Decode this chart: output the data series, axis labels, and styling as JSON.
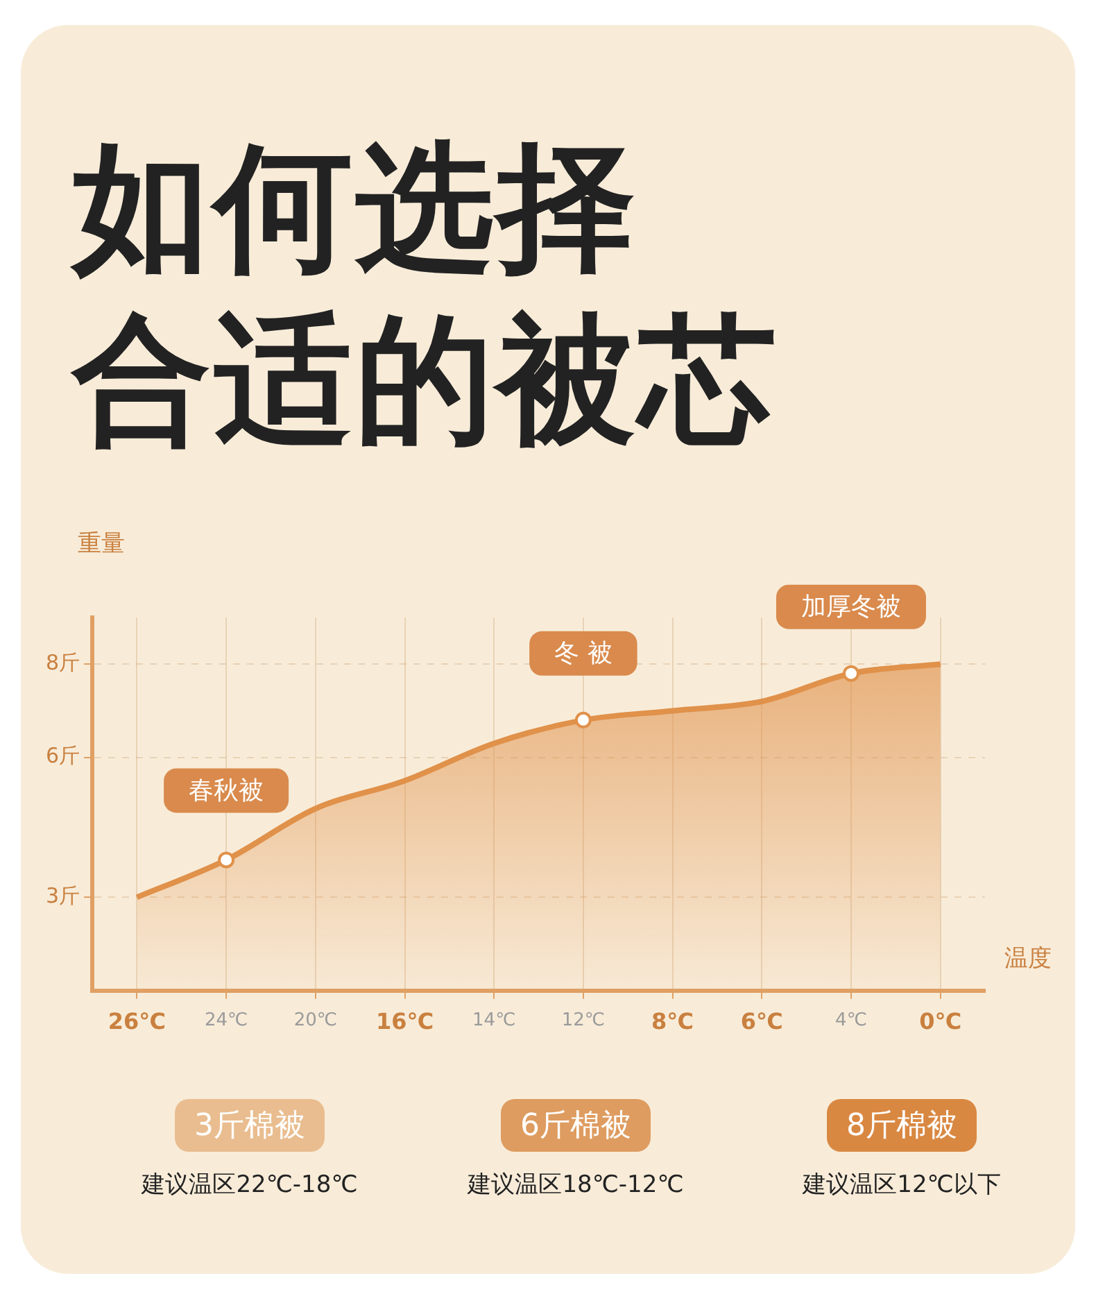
{
  "chart_data": {
    "type": "area",
    "title": "如何选择合适的被芯",
    "xlabel": "温度",
    "ylabel": "重量",
    "categories": [
      "26℃",
      "24℃",
      "20℃",
      "16℃",
      "14℃",
      "12℃",
      "8℃",
      "6℃",
      "4℃",
      "0℃"
    ],
    "values": [
      3.0,
      3.8,
      4.9,
      5.5,
      6.3,
      6.8,
      7.0,
      7.2,
      7.8,
      8.0
    ],
    "color": "#e0914a",
    "ylim": [
      1,
      9
    ],
    "yticks": [
      {
        "value": 3,
        "label": "3斤"
      },
      {
        "value": 6,
        "label": "6斤"
      },
      {
        "value": 8,
        "label": "8斤"
      }
    ],
    "grid": true,
    "annotations": [
      {
        "text": "春秋被",
        "x": "24℃",
        "y": 3.8
      },
      {
        "text": "冬 被",
        "x": "12℃",
        "y": 6.8
      },
      {
        "text": "加厚冬被",
        "x": "4℃",
        "y": 7.8
      },
      "3斤棉被",
      "建议温区22℃-18℃",
      "6斤棉被",
      "建议温区18℃-12℃",
      "8斤棉被",
      "建议温区12℃以下"
    ]
  }
}
